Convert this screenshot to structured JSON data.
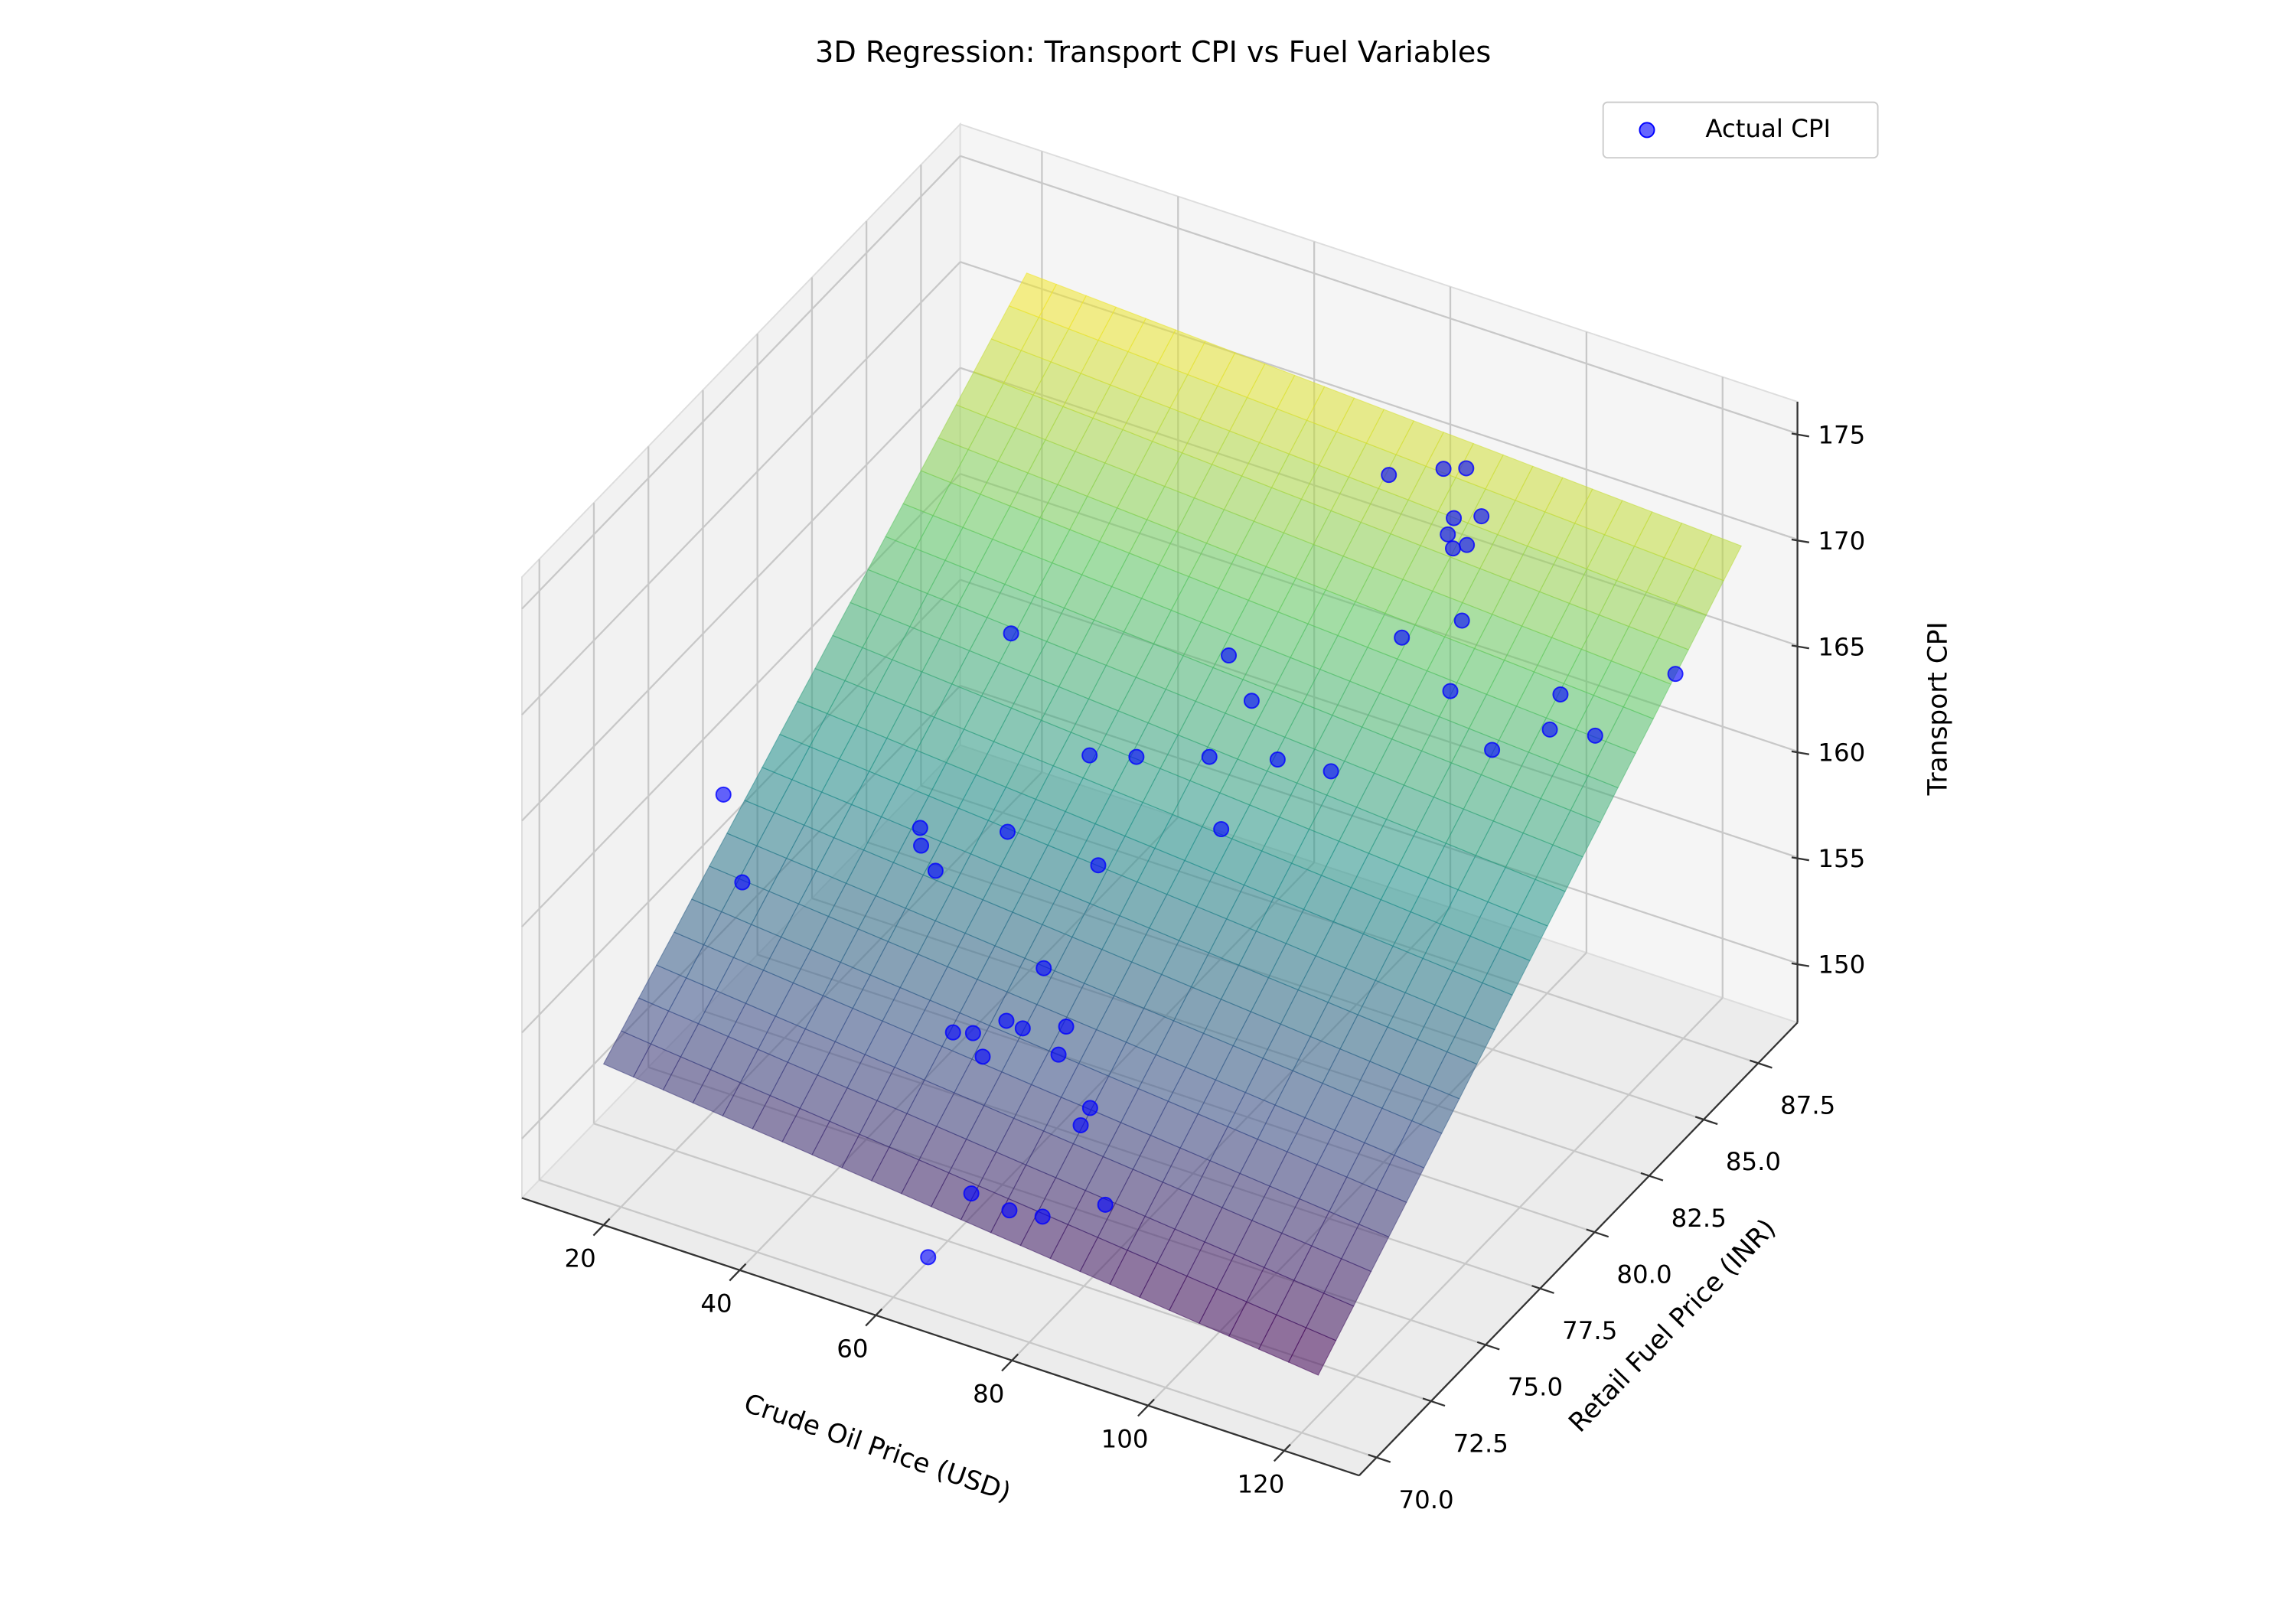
{
  "chart_data": {
    "type": "scatter3d",
    "title": "3D Regression: Transport CPI vs Fuel Variables",
    "x_label": "Crude Oil Price (USD)",
    "y_label": "Retail Fuel Price (INR)",
    "z_label": "Transport CPI",
    "xlim": [
      8,
      131
    ],
    "ylim": [
      69.2,
      89.3
    ],
    "zlim": [
      147.2,
      176.5
    ],
    "xticks": [
      20,
      40,
      60,
      80,
      100,
      120
    ],
    "yticks": [
      {
        "value": 70,
        "label": "70.0"
      },
      72.5,
      {
        "value": 75,
        "label": "75.0"
      },
      77.5,
      {
        "value": 80,
        "label": "80.0"
      },
      82.5,
      {
        "value": 85,
        "label": "85.0"
      },
      87.5
    ],
    "zticks": [
      150,
      155,
      160,
      165,
      170,
      175
    ],
    "grid": true,
    "legend": "upper right",
    "colormap": "viridis",
    "surface": {
      "x": [
        20,
        125
      ],
      "y": [
        69.2,
        88.6
      ],
      "z": [
        [
          154.8,
          171.5
        ],
        [
          151.3,
          169.8
        ]
      ]
    },
    "series": [
      {
        "name": "Actual CPI",
        "color": "#0000ff",
        "x": [
          17.1,
          25.0,
          42.8,
          43.9,
          47.3,
          53.4,
          41.1,
          66.4,
          66.4,
          65.4,
          59.8,
          62.1,
          67.8,
          72.9,
          64.8,
          73.7,
          80.9,
          80.8,
          72.1,
          77.7,
          81.6,
          88.9,
          66.4,
          58.4,
          64.0,
          72.8,
          80.9,
          88.1,
          78.7,
          68.6,
          74.2,
          76.1,
          82.2,
          84.9,
          86.6,
          89.7,
          87.0,
          88.4,
          89.8,
          87.3,
          94.2,
          97.3,
          106.0,
          110.6,
          111.6,
          117.3,
          123.0
        ],
        "y": [
          75.6,
          74.0,
          76.6,
          76.3,
          75.9,
          77.3,
          81.3,
          77.4,
          74.9,
          73.5,
          72.8,
          73.0,
          73.5,
          73.9,
          72.6,
          73.3,
          72.5,
          72.1,
          69.8,
          69.8,
          70.1,
          70.7,
          69.6,
          79.5,
          79.9,
          80.5,
          81.1,
          81.3,
          79.2,
          82.7,
          82.0,
          87.7,
          88.3,
          88.5,
          87.4,
          87.7,
          87.0,
          86.8,
          87.0,
          84.8,
          85.4,
          83.9,
          83.1,
          84.8,
          84.0,
          84.3,
          86.2
        ],
        "z": [
          160.4,
          158.8,
          160.5,
          160.1,
          159.7,
          160.7,
          164.5,
          160.4,
          158.2,
          157.1,
          156.7,
          156.7,
          157.0,
          157.2,
          156.3,
          156.6,
          155.7,
          155.3,
          153.6,
          153.4,
          153.2,
          153.9,
          150.2,
          162.5,
          162.6,
          162.9,
          163.0,
          163.0,
          161.5,
          164.9,
          164.1,
          168.9,
          169.2,
          169.3,
          168.3,
          168.4,
          168.0,
          167.7,
          167.8,
          165.5,
          166.4,
          165.0,
          164.0,
          165.3,
          164.6,
          164.6,
          166.1
        ]
      }
    ]
  }
}
